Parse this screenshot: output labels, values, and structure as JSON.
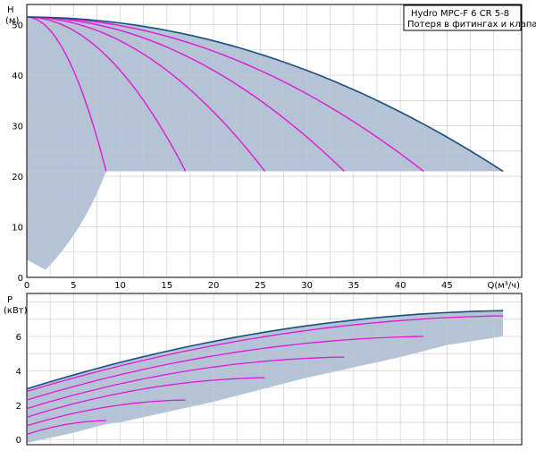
{
  "chart_data": [
    {
      "type": "line",
      "id": "head",
      "ylabel_top": "H",
      "ylabel_unit": "(м)",
      "xlabel": "Q(м³/ч)",
      "xlim": [
        0,
        53
      ],
      "ylim": [
        0,
        54
      ],
      "x_ticks": [
        "0",
        "5",
        "10",
        "15",
        "20",
        "25",
        "30",
        "35",
        "40",
        "45"
      ],
      "y_ticks": [
        "0",
        "10",
        "20",
        "30",
        "40",
        "50"
      ],
      "grid": true,
      "legend": {
        "position": "top-right",
        "lines": [
          "Hydro  MPC-F 6  CR 5-8",
          "Потеря в фитингах и клапанах"
        ]
      },
      "colors": {
        "envelope": "#1b4f7c",
        "curves": "#e018d8",
        "fill": "#b4c4d6"
      },
      "series": [
        {
          "x": [
            0,
            8.5
          ],
          "y": [
            51.5,
            21
          ]
        },
        {
          "x": [
            0,
            17
          ],
          "y": [
            51.5,
            21
          ]
        },
        {
          "x": [
            0,
            25.5
          ],
          "y": [
            51.5,
            21
          ]
        },
        {
          "x": [
            0,
            34
          ],
          "y": [
            51.5,
            21
          ]
        },
        {
          "x": [
            0,
            42.5
          ],
          "y": [
            51.5,
            21
          ]
        },
        {
          "x": [
            0,
            51
          ],
          "y": [
            51.5,
            21
          ]
        }
      ],
      "shaded_low_region": {
        "x": [
          0,
          2,
          8.5
        ],
        "y": [
          3.5,
          1.5,
          21
        ]
      }
    },
    {
      "type": "line",
      "id": "power",
      "ylabel_top": "P",
      "ylabel_unit": "(кВт)",
      "xlim": [
        0,
        53
      ],
      "ylim": [
        -0.3,
        8.5
      ],
      "y_ticks": [
        "0",
        "2",
        "4",
        "6"
      ],
      "grid": true,
      "colors": {
        "envelope": "#1b4f7c",
        "curves": "#e018d8",
        "fill": "#b4c4d6"
      },
      "series": [
        {
          "x": [
            0,
            8.5
          ],
          "y": [
            0.3,
            1.1
          ]
        },
        {
          "x": [
            0,
            17
          ],
          "y": [
            0.8,
            2.3
          ]
        },
        {
          "x": [
            0,
            25.5
          ],
          "y": [
            1.3,
            3.6
          ]
        },
        {
          "x": [
            0,
            34
          ],
          "y": [
            1.8,
            4.8
          ]
        },
        {
          "x": [
            0,
            42.5
          ],
          "y": [
            2.3,
            6.0
          ]
        },
        {
          "x": [
            0,
            51
          ],
          "y": [
            2.8,
            7.2
          ]
        }
      ],
      "top_envelope": {
        "x": [
          0,
          51
        ],
        "y": [
          2.95,
          7.5
        ]
      }
    }
  ]
}
